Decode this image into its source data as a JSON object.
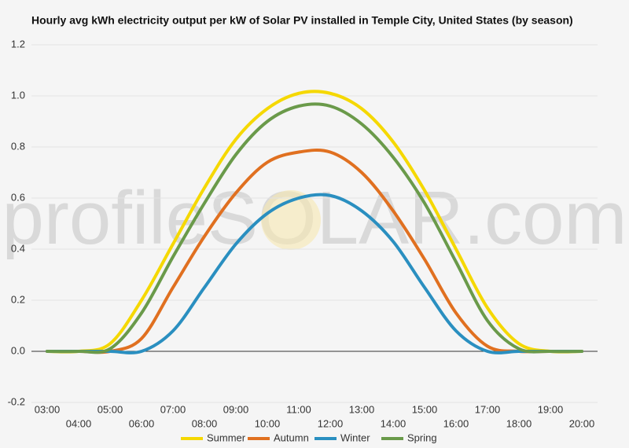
{
  "chart_data": {
    "type": "line",
    "title": "Hourly avg kWh electricity output per kW of Solar PV installed in Temple City, United States (by season)",
    "watermark": "profileSOLAR.com",
    "categories": [
      "03:00",
      "04:00",
      "05:00",
      "06:00",
      "07:00",
      "08:00",
      "09:00",
      "10:00",
      "11:00",
      "12:00",
      "13:00",
      "14:00",
      "15:00",
      "16:00",
      "17:00",
      "18:00",
      "19:00",
      "20:00"
    ],
    "series": [
      {
        "name": "Summer",
        "color": "#f5d800",
        "values": [
          0,
          0,
          0.03,
          0.2,
          0.42,
          0.64,
          0.83,
          0.95,
          1.01,
          1.01,
          0.95,
          0.82,
          0.63,
          0.4,
          0.17,
          0.03,
          0,
          0
        ]
      },
      {
        "name": "Autumn",
        "color": "#e07020",
        "values": [
          0,
          0,
          0,
          0.05,
          0.25,
          0.45,
          0.62,
          0.74,
          0.78,
          0.78,
          0.7,
          0.55,
          0.36,
          0.15,
          0.02,
          0,
          0,
          0
        ]
      },
      {
        "name": "Winter",
        "color": "#2a8fc0",
        "values": [
          0,
          0,
          0,
          0,
          0.08,
          0.25,
          0.42,
          0.54,
          0.6,
          0.61,
          0.55,
          0.43,
          0.25,
          0.08,
          0,
          0,
          0,
          0
        ]
      },
      {
        "name": "Spring",
        "color": "#6a9a4a",
        "values": [
          0,
          0,
          0.01,
          0.15,
          0.37,
          0.58,
          0.77,
          0.9,
          0.96,
          0.96,
          0.89,
          0.76,
          0.58,
          0.35,
          0.12,
          0.01,
          0,
          0
        ]
      }
    ],
    "ylim": [
      -0.2,
      1.2
    ],
    "yticks": [
      -0.2,
      {
        "value": 0,
        "label": "0.0"
      },
      0.2,
      0.4,
      0.6,
      0.8,
      {
        "value": 1,
        "label": "1.0"
      },
      1.2
    ],
    "grid": true,
    "legend": "bottom"
  }
}
